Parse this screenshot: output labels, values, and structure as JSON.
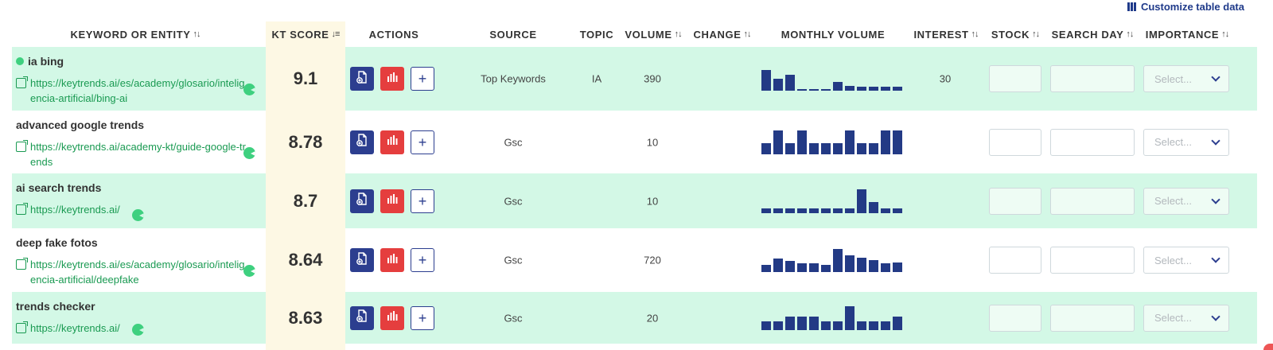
{
  "customize_label": "Customize table data",
  "headers": {
    "keyword": "KEYWORD OR ENTITY",
    "kt_score": "KT SCORE",
    "actions": "ACTIONS",
    "source": "SOURCE",
    "topic": "TOPIC",
    "volume": "VOLUME",
    "change": "CHANGE",
    "monthly_volume": "MONTHLY VOLUME",
    "interest": "INTEREST",
    "stock": "STOCK",
    "search_day": "SEARCH DAY",
    "importance": "IMPORTANCE"
  },
  "sort_glyph": "↑↓",
  "sort_active_glyph": "↓≡",
  "plus_glyph": "+",
  "select_placeholder": "Select...",
  "icons": [
    "columns-icon",
    "sort-icon",
    "external-link-icon",
    "pacman-icon",
    "document-add-icon",
    "bar-chart-icon",
    "plus-icon",
    "chevron-down-icon",
    "status-dot-icon"
  ],
  "colors": {
    "brand_blue": "#2c3e8f",
    "accent_red": "#e53e3e",
    "row_green": "#d3f8e6",
    "kt_column": "#fdf8e4",
    "link_green": "#1a9a52",
    "bar_navy": "#233a85"
  },
  "rows": [
    {
      "keyword": "ia bing",
      "has_dot": true,
      "url": "https://keytrends.ai/es/academy/glosario/inteligencia-artificial/bing-ai",
      "kt_score": "9.1",
      "source": "Top Keywords",
      "topic": "IA",
      "volume": "390",
      "change": "",
      "interest": "30",
      "monthly_volume": [
        85,
        50,
        65,
        4,
        4,
        4,
        35,
        20,
        15,
        15,
        15,
        15
      ]
    },
    {
      "keyword": "advanced google trends",
      "has_dot": false,
      "url": "https://keytrends.ai/academy-kt/guide-google-trends",
      "kt_score": "8.78",
      "source": "Gsc",
      "topic": "",
      "volume": "10",
      "change": "",
      "interest": "",
      "monthly_volume": [
        45,
        100,
        45,
        100,
        45,
        45,
        45,
        100,
        45,
        45,
        100,
        100
      ]
    },
    {
      "keyword": "ai search trends",
      "has_dot": false,
      "url": "https://keytrends.ai/",
      "kt_score": "8.7",
      "source": "Gsc",
      "topic": "",
      "volume": "10",
      "change": "",
      "interest": "",
      "monthly_volume": [
        20,
        20,
        20,
        20,
        20,
        20,
        20,
        20,
        100,
        45,
        20,
        20
      ]
    },
    {
      "keyword": "deep fake fotos",
      "has_dot": false,
      "url": "https://keytrends.ai/es/academy/glosario/inteligencia-artificial/deepfake",
      "kt_score": "8.64",
      "source": "Gsc",
      "topic": "",
      "volume": "720",
      "change": "",
      "interest": "",
      "monthly_volume": [
        30,
        55,
        45,
        35,
        35,
        30,
        95,
        70,
        60,
        50,
        35,
        40
      ]
    },
    {
      "keyword": "trends checker",
      "has_dot": false,
      "url": "https://keytrends.ai/",
      "kt_score": "8.63",
      "source": "Gsc",
      "topic": "",
      "volume": "20",
      "change": "",
      "interest": "",
      "monthly_volume": [
        35,
        35,
        55,
        55,
        55,
        35,
        35,
        100,
        35,
        35,
        35,
        55
      ]
    }
  ]
}
